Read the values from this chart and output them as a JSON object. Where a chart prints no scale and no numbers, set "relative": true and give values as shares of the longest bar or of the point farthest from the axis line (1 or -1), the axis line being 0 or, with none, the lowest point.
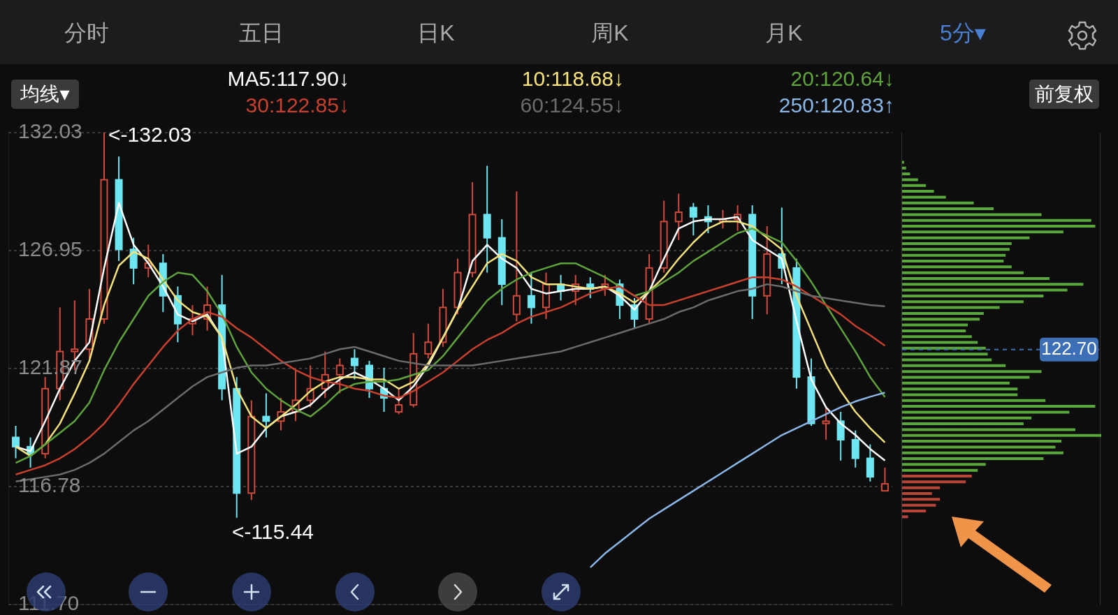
{
  "chart_data": [
    {
      "type": "candlestick",
      "categories": [
        null,
        null,
        null,
        null,
        null,
        null,
        null,
        null,
        null,
        null,
        null,
        null,
        null,
        null,
        null,
        null,
        null,
        null,
        null,
        null,
        null,
        null,
        null,
        null,
        null,
        null,
        null,
        null,
        null,
        null,
        null,
        null,
        null,
        null,
        null,
        null,
        null,
        null,
        null,
        null,
        null,
        null,
        null,
        null,
        null,
        null,
        null,
        null,
        null,
        null,
        null,
        null,
        null,
        null,
        null,
        null,
        null,
        null,
        null,
        null
      ],
      "ohlc": [
        [
          118.9,
          119.4,
          118.0,
          118.5
        ],
        [
          118.5,
          118.9,
          117.6,
          118.2
        ],
        [
          118.2,
          121.5,
          118.0,
          121.0
        ],
        [
          121.0,
          124.5,
          120.5,
          122.6
        ],
        [
          122.6,
          124.8,
          121.8,
          122.7
        ],
        [
          122.7,
          125.3,
          122.3,
          124.0
        ],
        [
          124.0,
          132.03,
          123.8,
          130.0
        ],
        [
          130.0,
          131.0,
          126.5,
          127.0
        ],
        [
          127.0,
          127.5,
          125.5,
          126.2
        ],
        [
          126.2,
          127.2,
          125.8,
          126.4
        ],
        [
          126.4,
          126.8,
          124.3,
          125.0
        ],
        [
          125.0,
          125.4,
          123.0,
          123.8
        ],
        [
          123.8,
          124.6,
          123.3,
          124.0
        ],
        [
          124.0,
          125.4,
          123.5,
          124.6
        ],
        [
          124.6,
          125.9,
          120.5,
          121.0
        ],
        [
          121.0,
          121.5,
          115.44,
          116.5
        ],
        [
          116.5,
          120.5,
          116.2,
          119.8
        ],
        [
          119.8,
          120.8,
          118.9,
          119.6
        ],
        [
          119.6,
          120.6,
          119.2,
          120.0
        ],
        [
          120.0,
          121.8,
          119.6,
          120.5
        ],
        [
          120.5,
          122.0,
          120.2,
          121.0
        ],
        [
          121.0,
          122.6,
          120.6,
          121.6
        ],
        [
          121.6,
          122.3,
          120.8,
          122.0
        ],
        [
          122.3,
          122.7,
          121.4,
          122.0
        ],
        [
          122.0,
          122.2,
          120.6,
          121.0
        ],
        [
          121.0,
          121.9,
          120.0,
          120.6
        ],
        [
          120.0,
          121.0,
          119.9,
          120.3
        ],
        [
          120.3,
          123.4,
          120.2,
          122.5
        ],
        [
          122.5,
          123.8,
          122.3,
          123.0
        ],
        [
          123.0,
          125.3,
          122.8,
          124.5
        ],
        [
          124.5,
          126.6,
          124.2,
          126.0
        ],
        [
          126.0,
          129.9,
          125.8,
          128.5
        ],
        [
          128.5,
          130.6,
          126.0,
          127.5
        ],
        [
          127.5,
          128.3,
          124.6,
          125.5
        ],
        [
          124.2,
          129.5,
          123.9,
          125.0
        ],
        [
          125.0,
          126.0,
          123.8,
          124.5
        ],
        [
          124.5,
          126.0,
          124.0,
          125.5
        ],
        [
          125.5,
          125.9,
          124.8,
          125.2
        ],
        [
          125.2,
          125.9,
          124.6,
          125.5
        ],
        [
          125.5,
          125.8,
          124.9,
          125.3
        ],
        [
          125.3,
          125.9,
          125.0,
          125.5
        ],
        [
          125.5,
          125.7,
          124.0,
          124.6
        ],
        [
          124.6,
          124.9,
          123.6,
          124.0
        ],
        [
          124.0,
          126.8,
          123.8,
          126.2
        ],
        [
          126.2,
          129.1,
          126.0,
          128.2
        ],
        [
          128.2,
          129.4,
          127.4,
          128.6
        ],
        [
          128.8,
          129.0,
          127.6,
          128.4
        ],
        [
          128.4,
          128.9,
          127.7,
          128.2
        ],
        [
          128.2,
          128.7,
          127.9,
          128.3
        ],
        [
          128.3,
          128.9,
          127.8,
          128.5
        ],
        [
          128.5,
          128.9,
          124.0,
          125.0
        ],
        [
          125.0,
          128.0,
          124.2,
          126.8
        ],
        [
          126.8,
          128.8,
          125.5,
          126.2
        ],
        [
          126.2,
          126.6,
          121.0,
          121.5
        ],
        [
          121.5,
          122.3,
          119.4,
          119.5
        ],
        [
          119.5,
          120.2,
          118.8,
          119.6
        ],
        [
          119.6,
          120.0,
          117.9,
          118.8
        ],
        [
          118.8,
          119.2,
          117.6,
          118.0
        ],
        [
          118.0,
          118.6,
          117.0,
          117.2
        ],
        [
          116.6,
          117.6,
          116.6,
          116.9
        ]
      ],
      "colors": [
        "#6ee6f2",
        "#6ee6f2",
        "#d24a3c",
        "#d24a3c",
        "#d24a3c",
        "#d24a3c",
        "#d24a3c",
        "#6ee6f2",
        "#6ee6f2",
        "#d24a3c",
        "#6ee6f2",
        "#6ee6f2",
        "#d24a3c",
        "#d24a3c",
        "#6ee6f2",
        "#6ee6f2",
        "#d24a3c",
        "#6ee6f2",
        "#d24a3c",
        "#d24a3c",
        "#d24a3c",
        "#d24a3c",
        "#d24a3c",
        "#6ee6f2",
        "#6ee6f2",
        "#6ee6f2",
        "#d24a3c",
        "#d24a3c",
        "#d24a3c",
        "#d24a3c",
        "#d24a3c",
        "#d24a3c",
        "#6ee6f2",
        "#6ee6f2",
        "#d24a3c",
        "#6ee6f2",
        "#d24a3c",
        "#6ee6f2",
        "#d24a3c",
        "#6ee6f2",
        "#d24a3c",
        "#6ee6f2",
        "#6ee6f2",
        "#d24a3c",
        "#d24a3c",
        "#d24a3c",
        "#6ee6f2",
        "#6ee6f2",
        "#d24a3c",
        "#d24a3c",
        "#6ee6f2",
        "#d24a3c",
        "#6ee6f2",
        "#6ee6f2",
        "#6ee6f2",
        "#d24a3c",
        "#6ee6f2",
        "#6ee6f2",
        "#6ee6f2",
        "#d24a3c"
      ],
      "series": [
        {
          "type": "line",
          "name": "MA5:117.90↓",
          "color": "#ffffff",
          "values": [
            118.5,
            118.3,
            119.6,
            121.0,
            122.2,
            123.0,
            126.2,
            129.0,
            127.2,
            126.4,
            125.4,
            124.2,
            123.9,
            124.2,
            123.2,
            118.2,
            118.5,
            119.3,
            119.8,
            120.0,
            120.3,
            120.9,
            121.4,
            121.7,
            121.4,
            121.0,
            120.5,
            121.1,
            122.0,
            123.2,
            124.4,
            126.5,
            127.2,
            126.6,
            126.2,
            125.3,
            125.1,
            125.2,
            125.3,
            125.3,
            125.4,
            125.0,
            124.4,
            125.2,
            126.6,
            127.9,
            128.2,
            128.3,
            128.3,
            128.4,
            127.4,
            127.0,
            126.6,
            123.9,
            121.4,
            120.2,
            119.5,
            119.0,
            118.4,
            117.9
          ]
        },
        {
          "type": "line",
          "name": "10:118.68↓",
          "color": "#f5e27a",
          "values": [
            118.5,
            118.1,
            118.6,
            119.5,
            120.8,
            122.2,
            124.6,
            126.3,
            126.9,
            126.6,
            125.7,
            124.8,
            124.3,
            124.1,
            123.2,
            121.0,
            119.8,
            119.3,
            119.8,
            120.3,
            120.9,
            121.3,
            121.5,
            121.5,
            121.4,
            121.4,
            121.0,
            121.3,
            122.1,
            123.2,
            124.4,
            125.4,
            126.4,
            126.8,
            126.5,
            125.8,
            125.5,
            125.5,
            125.4,
            125.3,
            125.4,
            125.1,
            124.7,
            125.2,
            125.8,
            126.6,
            127.3,
            127.9,
            128.2,
            128.2,
            128.0,
            127.5,
            127.0,
            125.0,
            123.5,
            122.0,
            120.9,
            120.0,
            119.3,
            118.68
          ]
        },
        {
          "type": "line",
          "name": "20:120.64↓",
          "color": "#5ea33c",
          "values": [
            117.8,
            118.1,
            118.6,
            119.1,
            119.6,
            120.4,
            121.8,
            123.0,
            124.0,
            125.0,
            125.6,
            126.0,
            125.9,
            125.2,
            124.2,
            122.8,
            121.7,
            121.0,
            120.5,
            120.1,
            119.8,
            120.3,
            120.9,
            121.2,
            121.3,
            121.3,
            121.4,
            121.6,
            121.8,
            122.4,
            123.2,
            124.0,
            124.8,
            125.3,
            125.7,
            126.0,
            126.2,
            126.4,
            126.4,
            126.1,
            125.8,
            125.4,
            125.0,
            125.2,
            125.6,
            126.0,
            126.5,
            126.9,
            127.3,
            127.7,
            127.9,
            127.6,
            127.3,
            126.5,
            125.6,
            124.6,
            123.6,
            122.6,
            121.5,
            120.64
          ]
        },
        {
          "type": "line",
          "name": "30:122.85↓",
          "color": "#c9402f",
          "values": [
            117.3,
            117.5,
            117.7,
            118.0,
            118.4,
            118.9,
            119.5,
            120.3,
            121.2,
            122.0,
            122.8,
            123.5,
            124.0,
            124.3,
            124.1,
            123.6,
            123.2,
            122.7,
            122.2,
            121.8,
            121.5,
            121.3,
            121.2,
            121.0,
            120.9,
            120.7,
            120.6,
            120.9,
            121.3,
            121.7,
            122.2,
            122.7,
            123.1,
            123.4,
            123.8,
            124.1,
            124.3,
            124.5,
            124.8,
            125.1,
            125.3,
            125.4,
            125.0,
            124.6,
            124.6,
            124.8,
            125.0,
            125.2,
            125.4,
            125.6,
            125.8,
            125.8,
            125.7,
            125.4,
            125.0,
            124.6,
            124.2,
            123.7,
            123.3,
            122.85
          ]
        },
        {
          "type": "line",
          "name": "60:124.55↓",
          "color": "#6b6b6b",
          "values": [
            117.0,
            117.1,
            117.2,
            117.3,
            117.5,
            117.8,
            118.2,
            118.7,
            119.2,
            119.6,
            120.1,
            120.6,
            121.1,
            121.5,
            121.7,
            121.9,
            122.0,
            122.0,
            122.1,
            122.2,
            122.3,
            122.5,
            122.7,
            122.8,
            122.6,
            122.4,
            122.2,
            122.1,
            122.0,
            122.0,
            122.0,
            122.0,
            122.1,
            122.2,
            122.3,
            122.4,
            122.5,
            122.6,
            122.8,
            123.0,
            123.2,
            123.4,
            123.6,
            123.8,
            124.0,
            124.3,
            124.5,
            124.8,
            125.0,
            125.2,
            125.3,
            125.5,
            125.4,
            125.2,
            125.0,
            124.9,
            124.8,
            124.7,
            124.6,
            124.55
          ]
        },
        {
          "type": "line",
          "name": "250:120.83↑",
          "color": "#8ab8e8",
          "values": [
            null,
            null,
            null,
            null,
            null,
            null,
            null,
            null,
            null,
            null,
            null,
            null,
            null,
            null,
            null,
            null,
            null,
            null,
            null,
            null,
            null,
            null,
            null,
            null,
            null,
            null,
            null,
            null,
            null,
            null,
            null,
            null,
            null,
            null,
            null,
            null,
            null,
            null,
            null,
            113.3,
            113.9,
            114.4,
            114.9,
            115.4,
            115.8,
            116.2,
            116.6,
            117.0,
            117.4,
            117.8,
            118.2,
            118.6,
            119.0,
            119.3,
            119.6,
            119.9,
            120.2,
            120.45,
            120.65,
            120.83
          ]
        }
      ],
      "ylim": [
        111.7,
        132.03
      ],
      "yticks": [
        {
          "value": 111.7,
          "label": "111.70"
        },
        116.78,
        121.87,
        126.95,
        132.03
      ],
      "grid": "y",
      "legend": "top",
      "annotations": [
        "分时",
        "五日",
        "日K",
        "周K",
        "月K",
        "5分▾",
        "均线▾",
        "前复权",
        "<-132.03",
        "<-115.44"
      ]
    },
    {
      "type": "bar",
      "orientation": "horizontal",
      "relative": true,
      "tick_labels": false,
      "ylim": [
        111.7,
        132.03
      ],
      "x": [
        130.75,
        130.5,
        130.25,
        130.0,
        129.75,
        129.5,
        129.25,
        129.0,
        128.75,
        128.5,
        128.25,
        128.0,
        127.75,
        127.5,
        127.25,
        127.0,
        126.75,
        126.5,
        126.25,
        126.0,
        125.75,
        125.5,
        125.25,
        125.0,
        124.75,
        124.5,
        124.25,
        124.0,
        123.75,
        123.5,
        123.25,
        123.0,
        122.75,
        122.5,
        122.25,
        122.0,
        121.75,
        121.5,
        121.25,
        121.0,
        120.75,
        120.5,
        120.25,
        120.0,
        119.75,
        119.5,
        119.25,
        119.0,
        118.75,
        118.5,
        118.25,
        118.0,
        117.75,
        117.5,
        117.25,
        117.0,
        116.75,
        116.5,
        116.25,
        116.0,
        115.75,
        115.5
      ],
      "values": [
        0.01,
        0.02,
        0.04,
        0.08,
        0.12,
        0.16,
        0.22,
        0.36,
        0.46,
        0.7,
        0.95,
        0.97,
        0.81,
        0.64,
        0.55,
        0.54,
        0.52,
        0.51,
        0.55,
        0.61,
        0.74,
        0.91,
        0.83,
        0.71,
        0.61,
        0.49,
        0.41,
        0.39,
        0.33,
        0.32,
        0.35,
        0.38,
        0.42,
        0.43,
        0.45,
        0.52,
        0.7,
        0.64,
        0.54,
        0.58,
        0.58,
        0.72,
        0.97,
        0.84,
        0.65,
        0.61,
        0.87,
        1,
        0.8,
        0.77,
        0.81,
        0.71,
        0.42,
        0.38,
        0.35,
        0.32,
        0.19,
        0.15,
        0.19,
        0.17,
        0.12,
        0.03
      ],
      "colors": [
        "#5aa83c",
        "#5aa83c",
        "#5aa83c",
        "#5aa83c",
        "#5aa83c",
        "#5aa83c",
        "#5aa83c",
        "#5aa83c",
        "#5aa83c",
        "#5aa83c",
        "#5aa83c",
        "#5aa83c",
        "#5aa83c",
        "#5aa83c",
        "#5aa83c",
        "#5aa83c",
        "#5aa83c",
        "#5aa83c",
        "#5aa83c",
        "#5aa83c",
        "#5aa83c",
        "#5aa83c",
        "#5aa83c",
        "#5aa83c",
        "#5aa83c",
        "#5aa83c",
        "#5aa83c",
        "#5aa83c",
        "#5aa83c",
        "#5aa83c",
        "#5aa83c",
        "#5aa83c",
        "#5aa83c",
        "#5aa83c",
        "#5aa83c",
        "#5aa83c",
        "#5aa83c",
        "#5aa83c",
        "#5aa83c",
        "#5aa83c",
        "#5aa83c",
        "#5aa83c",
        "#5aa83c",
        "#5aa83c",
        "#5aa83c",
        "#5aa83c",
        "#5aa83c",
        "#5aa83c",
        "#5aa83c",
        "#5aa83c",
        "#5aa83c",
        "#5aa83c",
        "#5aa83c",
        "#5aa83c",
        "#b8443a",
        "#b8443a",
        "#b8443a",
        "#b8443a",
        "#b8443a",
        "#b8443a",
        "#b8443a",
        "#b8443a"
      ],
      "ref_lines": [
        {
          "axis": "y",
          "value": 122.7,
          "label": "122.70",
          "color": "#3d6fb6",
          "line_style": "dashed"
        }
      ]
    }
  ]
}
